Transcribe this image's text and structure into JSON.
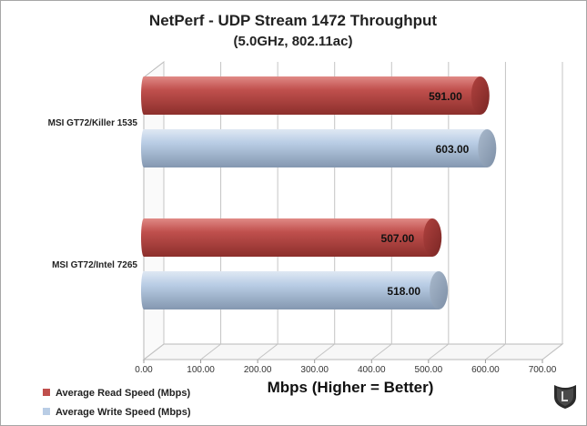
{
  "chart_data": {
    "type": "bar",
    "orientation": "horizontal",
    "title": "NetPerf - UDP Stream 1472 Throughput",
    "subtitle": "(5.0GHz, 802.11ac)",
    "xlabel": "Mbps (Higher = Better)",
    "ylabel": "",
    "xlim": [
      0,
      700
    ],
    "x_ticks": [
      "0.00",
      "100.00",
      "200.00",
      "300.00",
      "400.00",
      "500.00",
      "600.00",
      "700.00"
    ],
    "grid": true,
    "legend_position": "bottom-left",
    "categories": [
      "MSI GT72/Killer 1535",
      "MSI GT72/Intel 7265"
    ],
    "series": [
      {
        "name": "Average Read Speed (Mbps)",
        "color": "#c0504d",
        "values": [
          591.0,
          507.0
        ],
        "labels": [
          "591.00",
          "507.00"
        ]
      },
      {
        "name": "Average Write Speed (Mbps)",
        "color": "#b9cde5",
        "values": [
          603.0,
          518.0
        ],
        "labels": [
          "603.00",
          "518.00"
        ]
      }
    ]
  },
  "logo": {
    "icon": "legit-reviews-logo-icon"
  }
}
